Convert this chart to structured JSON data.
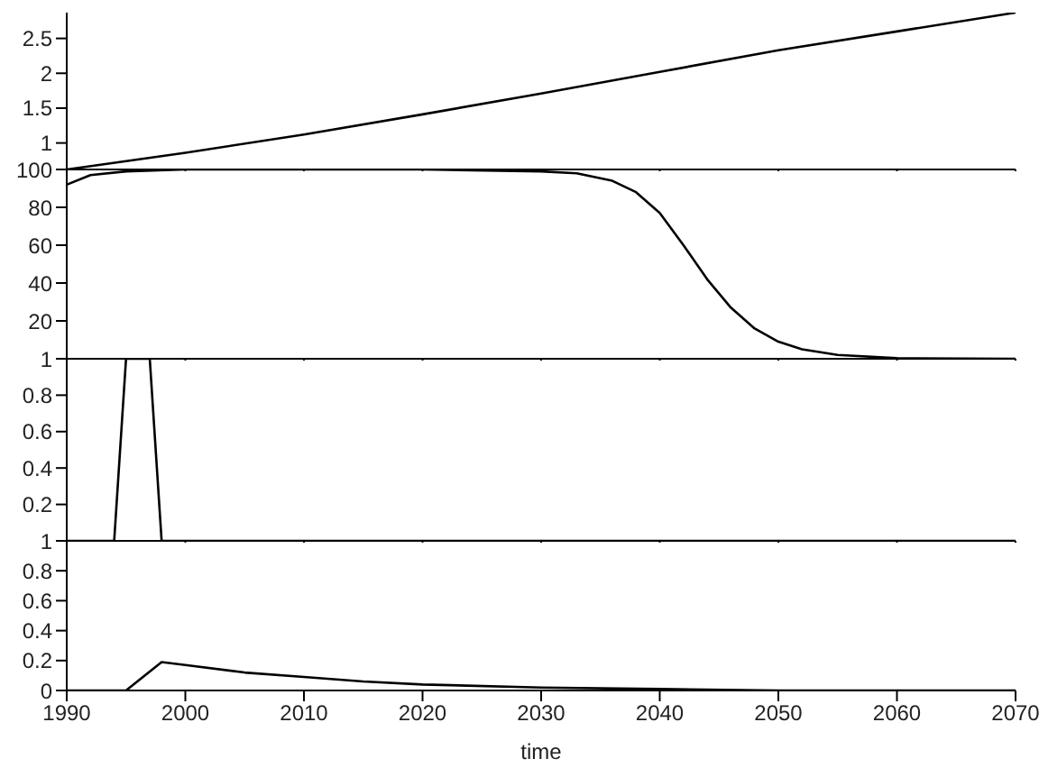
{
  "chart_data": [
    {
      "type": "line",
      "x": [
        1990,
        2000,
        2010,
        2020,
        2030,
        2040,
        2050,
        2060,
        2070
      ],
      "series": [
        {
          "color": "#000000",
          "values": [
            0.62,
            0.86,
            1.12,
            1.41,
            1.71,
            2.02,
            2.33,
            2.6,
            2.87
          ]
        }
      ],
      "xlim": [
        1990,
        2070
      ],
      "xticks": [
        1990,
        2000,
        2010,
        2020,
        2030,
        2040,
        2050,
        2060,
        2070
      ],
      "ylim": [
        0.62,
        2.87
      ],
      "yticks": [
        1,
        1.5,
        2,
        2.5
      ],
      "tick_labels": "y"
    },
    {
      "type": "line",
      "x": [
        1990,
        1992,
        1995,
        2000,
        2010,
        2020,
        2030,
        2033,
        2036,
        2038,
        2040,
        2042,
        2044,
        2046,
        2048,
        2050,
        2052,
        2055,
        2060,
        2070
      ],
      "series": [
        {
          "color": "#000000",
          "values": [
            92,
            97,
            99,
            100,
            100,
            100,
            99,
            98,
            94,
            88,
            77,
            60,
            42,
            27,
            16,
            9,
            5,
            2,
            0.3,
            0
          ]
        }
      ],
      "xlim": [
        1990,
        2070
      ],
      "xticks": [
        1990,
        2000,
        2010,
        2020,
        2030,
        2040,
        2050,
        2060,
        2070
      ],
      "ylim": [
        0,
        100
      ],
      "yticks": [
        20,
        40,
        60,
        80,
        100
      ],
      "tick_labels": "y"
    },
    {
      "type": "line",
      "x": [
        1990,
        1994,
        1995,
        1997,
        1998,
        2070
      ],
      "series": [
        {
          "color": "#000000",
          "values": [
            0,
            0,
            1,
            1,
            0,
            0
          ]
        }
      ],
      "xlim": [
        1990,
        2070
      ],
      "xticks": [
        1990,
        2000,
        2010,
        2020,
        2030,
        2040,
        2050,
        2060,
        2070
      ],
      "ylim": [
        0,
        1
      ],
      "yticks": [
        0.2,
        0.4,
        0.6,
        0.8,
        1
      ],
      "tick_labels": "y"
    },
    {
      "type": "line",
      "x": [
        1990,
        1995,
        1998,
        2000,
        2005,
        2010,
        2015,
        2020,
        2030,
        2040,
        2050,
        2070
      ],
      "series": [
        {
          "color": "#000000",
          "values": [
            0,
            0,
            0.19,
            0.17,
            0.12,
            0.09,
            0.06,
            0.04,
            0.02,
            0.01,
            0,
            0
          ]
        }
      ],
      "xlim": [
        1990,
        2070
      ],
      "xticks": [
        1990,
        2000,
        2010,
        2020,
        2030,
        2040,
        2050,
        2060,
        2070
      ],
      "ylim": [
        0,
        1
      ],
      "yticks": [
        0,
        0.2,
        0.4,
        0.6,
        0.8,
        1
      ],
      "xlabel": "time"
    }
  ]
}
